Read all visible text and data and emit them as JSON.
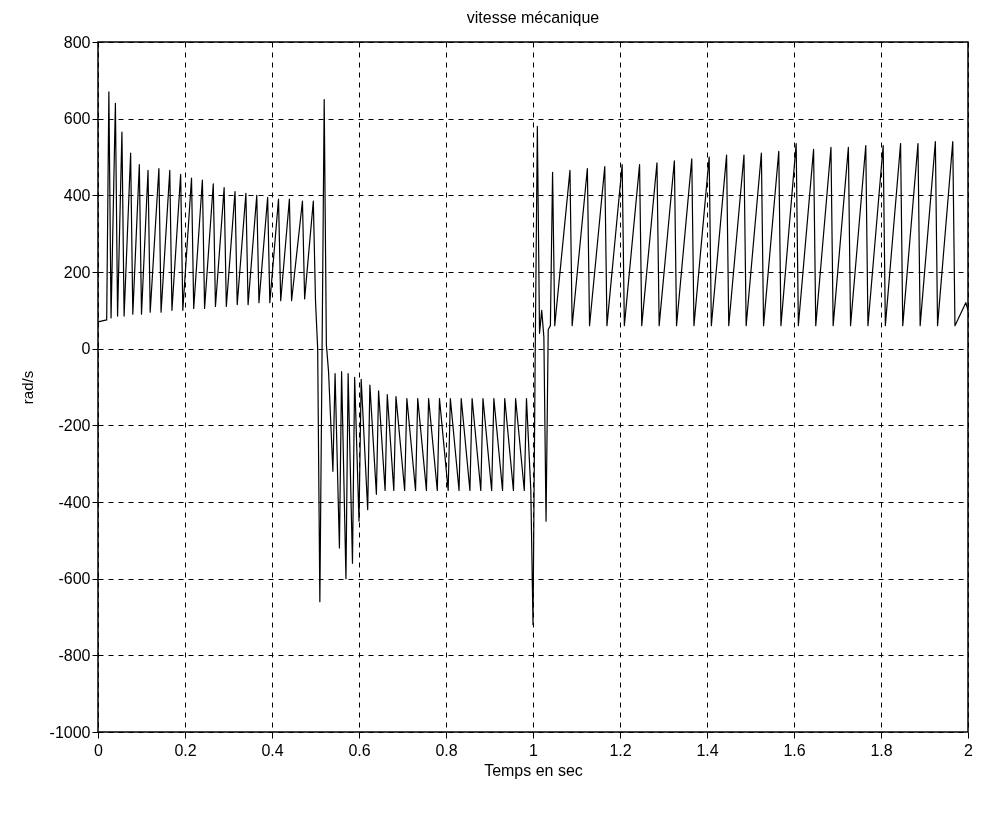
{
  "chart_data": {
    "type": "line",
    "title": "vitesse mécanique",
    "xlabel": "Temps en sec",
    "ylabel": "rad/s",
    "xlim": [
      0,
      2
    ],
    "ylim": [
      -1000,
      800
    ],
    "xticks": [
      0,
      0.2,
      0.4,
      0.6,
      0.8,
      1,
      1.2,
      1.4,
      1.6,
      1.8,
      2
    ],
    "yticks": [
      -1000,
      -800,
      -600,
      -400,
      -200,
      0,
      200,
      400,
      600,
      800
    ],
    "grid": true,
    "line_style": "solid",
    "marker": "none",
    "series": [
      {
        "color": "#000000",
        "x": [
          0,
          0.02,
          0.025,
          0.03,
          0.04,
          0.045,
          0.055,
          0.06,
          0.075,
          0.08,
          0.095,
          0.1,
          0.115,
          0.12,
          0.14,
          0.145,
          0.165,
          0.17,
          0.19,
          0.195,
          0.215,
          0.22,
          0.24,
          0.245,
          0.265,
          0.27,
          0.29,
          0.295,
          0.315,
          0.32,
          0.34,
          0.345,
          0.365,
          0.37,
          0.39,
          0.395,
          0.415,
          0.42,
          0.44,
          0.445,
          0.47,
          0.475,
          0.495,
          0.5,
          0.505,
          0.51,
          0.515,
          0.52,
          0.525,
          0.53,
          0.54,
          0.545,
          0.555,
          0.56,
          0.57,
          0.575,
          0.585,
          0.59,
          0.6,
          0.605,
          0.62,
          0.625,
          0.64,
          0.645,
          0.66,
          0.665,
          0.68,
          0.685,
          0.705,
          0.71,
          0.73,
          0.735,
          0.755,
          0.76,
          0.78,
          0.785,
          0.805,
          0.81,
          0.83,
          0.835,
          0.855,
          0.86,
          0.88,
          0.885,
          0.905,
          0.91,
          0.93,
          0.935,
          0.955,
          0.96,
          0.98,
          0.985,
          0.995,
          1,
          1.005,
          1.01,
          1.015,
          1.02,
          1.025,
          1.03,
          1.035,
          1.04,
          1.045,
          1.05,
          1.085,
          1.09,
          1.125,
          1.13,
          1.165,
          1.17,
          1.205,
          1.21,
          1.245,
          1.25,
          1.285,
          1.29,
          1.325,
          1.33,
          1.365,
          1.37,
          1.405,
          1.41,
          1.445,
          1.45,
          1.485,
          1.49,
          1.525,
          1.53,
          1.565,
          1.57,
          1.605,
          1.61,
          1.645,
          1.65,
          1.685,
          1.69,
          1.725,
          1.73,
          1.765,
          1.77,
          1.805,
          1.81,
          1.845,
          1.85,
          1.885,
          1.89,
          1.925,
          1.93,
          1.965,
          1.97,
          1.995,
          2
        ],
        "values": [
          70,
          75,
          670,
          80,
          640,
          85,
          565,
          85,
          510,
          90,
          480,
          90,
          465,
          95,
          470,
          95,
          465,
          100,
          455,
          100,
          445,
          105,
          440,
          105,
          430,
          110,
          420,
          110,
          410,
          115,
          405,
          115,
          400,
          120,
          395,
          120,
          390,
          125,
          390,
          125,
          385,
          130,
          385,
          125,
          0,
          -660,
          -20,
          650,
          10,
          -60,
          -320,
          -65,
          -520,
          -60,
          -600,
          -65,
          -560,
          -75,
          -450,
          -80,
          -420,
          -95,
          -380,
          -110,
          -370,
          -120,
          -370,
          -125,
          -370,
          -130,
          -370,
          -130,
          -370,
          -130,
          -370,
          -130,
          -370,
          -130,
          -370,
          -130,
          -370,
          -130,
          -370,
          -130,
          -370,
          -130,
          -370,
          -130,
          -370,
          -130,
          -370,
          -130,
          -370,
          -720,
          -20,
          580,
          40,
          100,
          30,
          -450,
          50,
          60,
          460,
          60,
          465,
          60,
          470,
          60,
          475,
          60,
          480,
          60,
          480,
          60,
          485,
          60,
          490,
          60,
          495,
          60,
          500,
          60,
          505,
          60,
          505,
          60,
          510,
          60,
          515,
          60,
          535,
          60,
          520,
          60,
          525,
          60,
          525,
          60,
          530,
          60,
          530,
          60,
          535,
          60,
          535,
          60,
          540,
          60,
          540,
          60,
          120,
          100
        ]
      }
    ]
  }
}
